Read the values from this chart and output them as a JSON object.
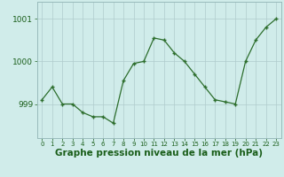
{
  "x": [
    0,
    1,
    2,
    3,
    4,
    5,
    6,
    7,
    8,
    9,
    10,
    11,
    12,
    13,
    14,
    15,
    16,
    17,
    18,
    19,
    20,
    21,
    22,
    23
  ],
  "y": [
    999.1,
    999.4,
    999.0,
    999.0,
    998.8,
    998.7,
    998.7,
    998.55,
    999.55,
    999.95,
    1000.0,
    1000.55,
    1000.5,
    1000.2,
    1000.0,
    999.7,
    999.4,
    999.1,
    999.05,
    999.0,
    1000.0,
    1000.5,
    1000.8,
    1001.0
  ],
  "line_color": "#2d6e2d",
  "marker_color": "#2d6e2d",
  "bg_color": "#d0ecea",
  "grid_color": "#b0cccc",
  "border_color": "#99bbbb",
  "xlabel": "Graphe pression niveau de la mer (hPa)",
  "xlabel_color": "#1a5e1a",
  "tick_color": "#1a5e1a",
  "ylim": [
    998.2,
    1001.4
  ],
  "yticks": [
    999,
    1000,
    1001
  ],
  "xlim": [
    -0.5,
    23.5
  ],
  "label_fontsize": 6.5,
  "xlabel_fontsize": 7.5
}
